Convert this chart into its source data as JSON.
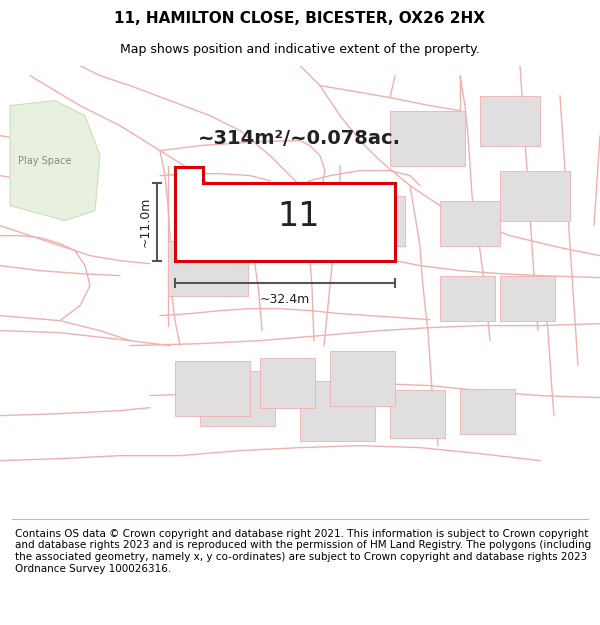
{
  "title": "11, HAMILTON CLOSE, BICESTER, OX26 2HX",
  "subtitle": "Map shows position and indicative extent of the property.",
  "footer": "Contains OS data © Crown copyright and database right 2021. This information is subject to Crown copyright and database rights 2023 and is reproduced with the permission of HM Land Registry. The polygons (including the associated geometry, namely x, y co-ordinates) are subject to Crown copyright and database rights 2023 Ordnance Survey 100026316.",
  "area_label": "~314m²/~0.078ac.",
  "width_label": "~32.4m",
  "height_label": "~11.0m",
  "plot_number": "11",
  "map_bg": "#ffffff",
  "plot_fill": "#ffffff",
  "plot_edge": "#dd0000",
  "road_color": "#f0b0b0",
  "building_color": "#e0dede",
  "green_color": "#e8f0e0",
  "dim_line_color": "#555555",
  "text_color": "#333333",
  "title_fontsize": 11,
  "subtitle_fontsize": 9,
  "footer_fontsize": 7.5,
  "area_fontsize": 14,
  "number_fontsize": 24,
  "dim_fontsize": 9
}
